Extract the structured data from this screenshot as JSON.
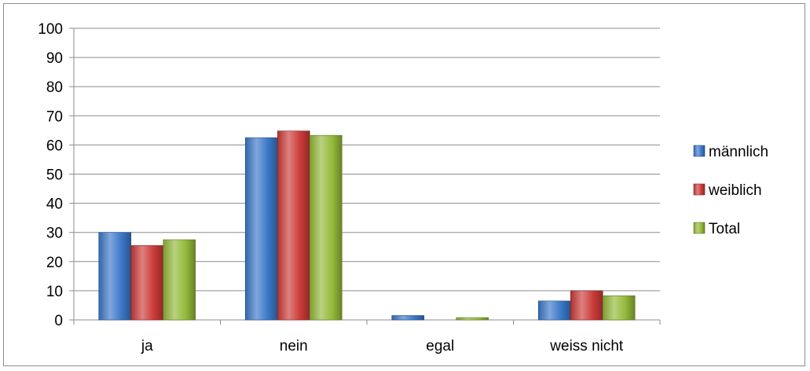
{
  "chart_data": {
    "type": "bar",
    "categories": [
      "ja",
      "nein",
      "egal",
      "weiss nicht"
    ],
    "series": [
      {
        "name": "männlich",
        "values": [
          30,
          62.5,
          1.5,
          6.5
        ],
        "color": "#3b78c9"
      },
      {
        "name": "weiblich",
        "values": [
          25.5,
          64.8,
          0,
          10
        ],
        "color": "#cc3b38"
      },
      {
        "name": "Total",
        "values": [
          27.5,
          63.3,
          0.8,
          8.3
        ],
        "color": "#94ba3a"
      }
    ],
    "y_ticks": [
      "0",
      "10",
      "20",
      "30",
      "40",
      "50",
      "60",
      "70",
      "80",
      "90",
      "100"
    ],
    "ylim": [
      0,
      100
    ],
    "grid": true,
    "legend_position": "right",
    "title": "",
    "xlabel": "",
    "ylabel": ""
  }
}
